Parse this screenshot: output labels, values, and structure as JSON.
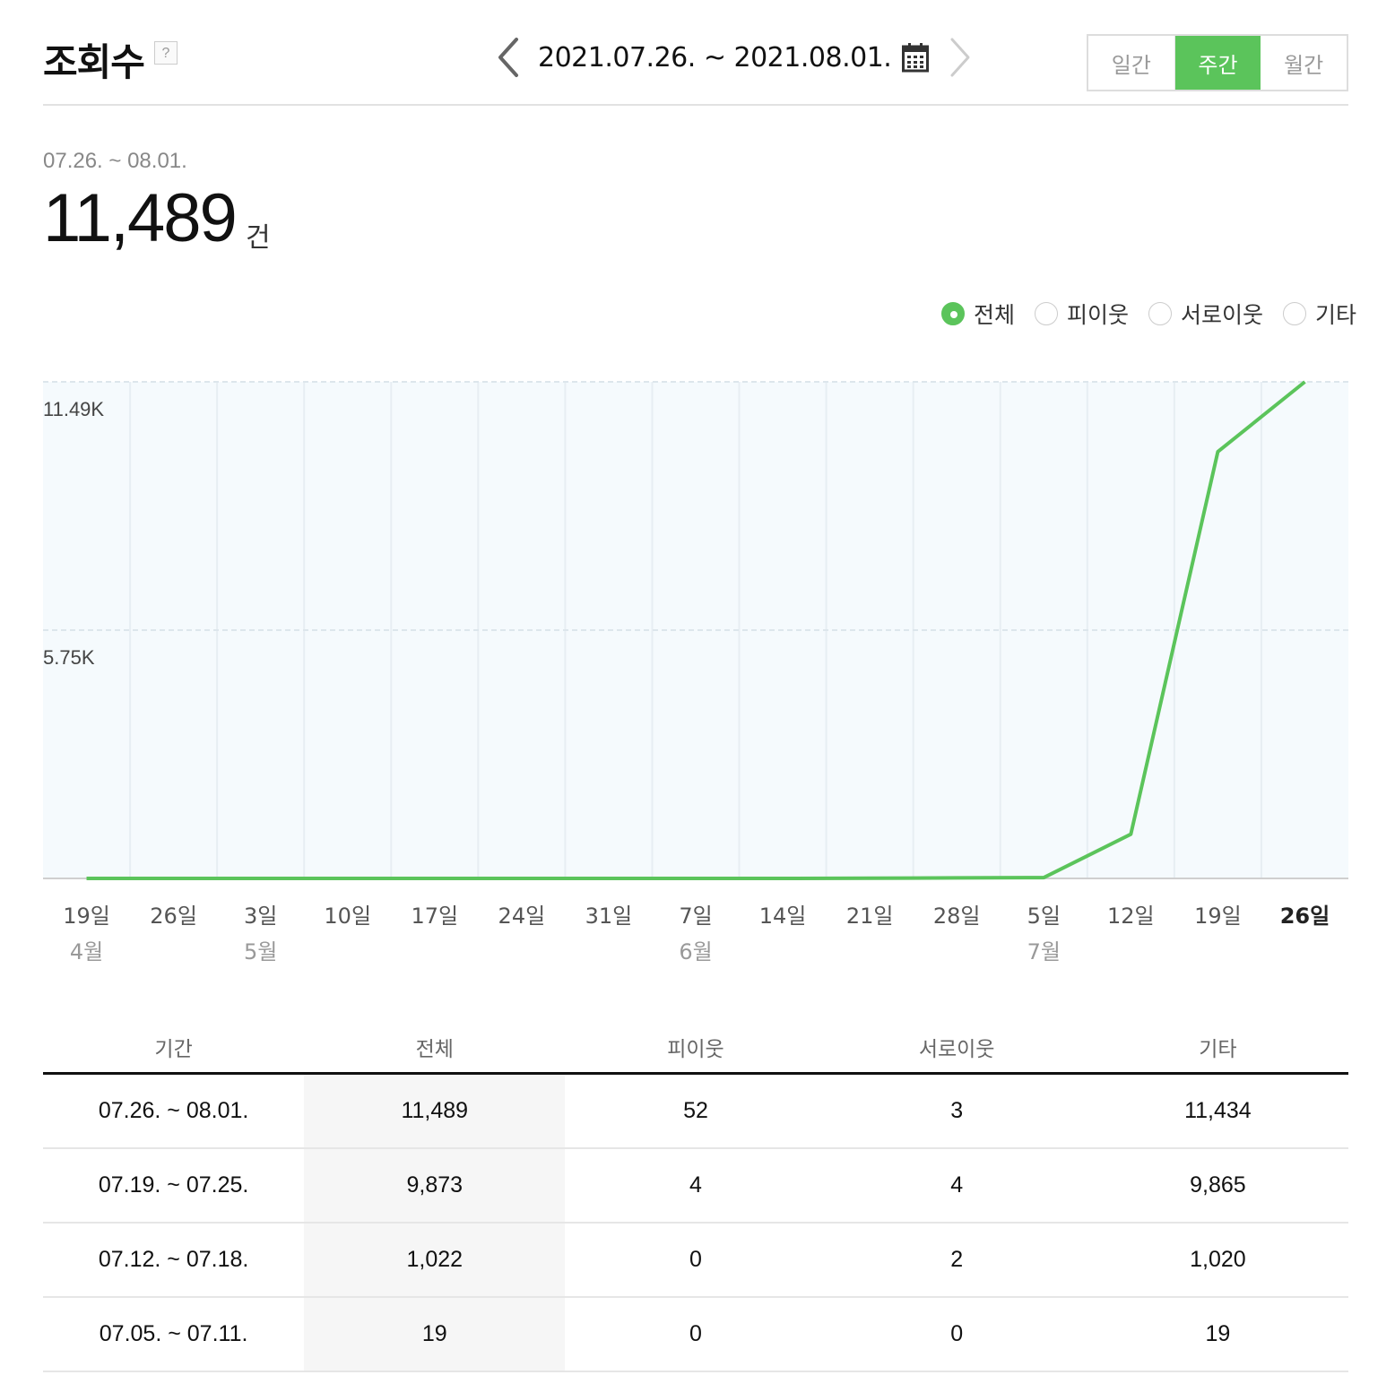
{
  "header": {
    "title": "조회수",
    "help_label": "?",
    "date_range": "2021.07.26. ~ 2021.08.01.",
    "icons": {
      "prev": "chevron-left-icon",
      "next": "chevron-right-icon",
      "calendar": "calendar-icon"
    },
    "period_tabs": [
      {
        "label": "일간",
        "active": false
      },
      {
        "label": "주간",
        "active": true
      },
      {
        "label": "월간",
        "active": false
      }
    ]
  },
  "summary": {
    "range": "07.26. ~ 08.01.",
    "total": "11,489",
    "unit": "건"
  },
  "filters": [
    {
      "label": "전체",
      "selected": true
    },
    {
      "label": "피이웃",
      "selected": false
    },
    {
      "label": "서로이웃",
      "selected": false
    },
    {
      "label": "기타",
      "selected": false
    }
  ],
  "colors": {
    "accent": "#5bc45b",
    "chart_bg": "#f5fafd"
  },
  "chart_data": {
    "type": "line",
    "x": [
      "19일",
      "26일",
      "3일",
      "10일",
      "17일",
      "24일",
      "31일",
      "7일",
      "14일",
      "21일",
      "28일",
      "5일",
      "12일",
      "19일",
      "26일"
    ],
    "months": [
      "4월",
      "",
      "5월",
      "",
      "",
      "",
      "",
      "6월",
      "",
      "",
      "",
      "7월",
      "",
      "",
      ""
    ],
    "series": [
      {
        "values": [
          0,
          0,
          0,
          0,
          0,
          0,
          0,
          0,
          0,
          4,
          12,
          19,
          1022,
          9873,
          11489
        ]
      }
    ],
    "yticks": [
      {
        "value": 11489,
        "label": "11.49K"
      },
      {
        "value": 5745,
        "label": "5.75K"
      }
    ],
    "ylim": [
      0,
      11489
    ],
    "current_index": 14,
    "grid": true
  },
  "table": {
    "columns": [
      "기간",
      "전체",
      "피이웃",
      "서로이웃",
      "기타"
    ],
    "rows": [
      [
        "07.26. ~ 08.01.",
        "11,489",
        "52",
        "3",
        "11,434"
      ],
      [
        "07.19. ~ 07.25.",
        "9,873",
        "4",
        "4",
        "9,865"
      ],
      [
        "07.12. ~ 07.18.",
        "1,022",
        "0",
        "2",
        "1,020"
      ],
      [
        "07.05. ~ 07.11.",
        "19",
        "0",
        "0",
        "19"
      ]
    ]
  }
}
